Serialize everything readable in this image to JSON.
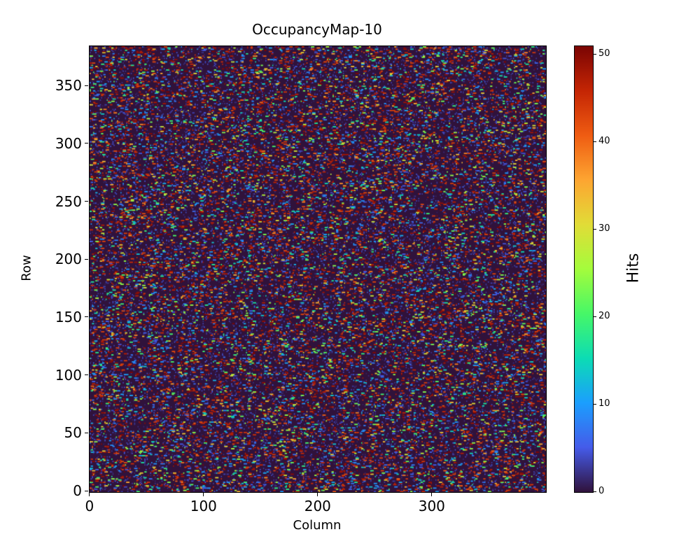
{
  "title": "OccupancyMap-10",
  "chart_data": {
    "type": "heatmap",
    "title": "OccupancyMap-10",
    "xlabel": "Column",
    "ylabel": "Row",
    "colorbar_label": "Hits",
    "cols": 400,
    "rows": 385,
    "vmin": 0,
    "vmax": 51,
    "x_ticks": [
      0,
      100,
      200,
      300
    ],
    "y_ticks": [
      0,
      50,
      100,
      150,
      200,
      250,
      300,
      350
    ],
    "colorbar_ticks": [
      0,
      10,
      20,
      30,
      40,
      50
    ],
    "colormap": "turbo",
    "colormap_stops": [
      [
        0.0,
        48,
        18,
        59
      ],
      [
        0.1,
        69,
        91,
        233
      ],
      [
        0.2,
        27,
        158,
        254
      ],
      [
        0.3,
        12,
        220,
        180
      ],
      [
        0.4,
        70,
        247,
        103
      ],
      [
        0.5,
        164,
        252,
        60
      ],
      [
        0.6,
        225,
        220,
        55
      ],
      [
        0.7,
        253,
        165,
        49
      ],
      [
        0.8,
        239,
        92,
        18
      ],
      [
        0.9,
        196,
        37,
        4
      ],
      [
        1.0,
        122,
        4,
        3
      ]
    ],
    "legend": "none",
    "grid": false,
    "seed": 10,
    "value_model": {
      "description": "dense random occupancy map: near-zero dark background with short horizontal dash runs of hits, dominated by high (red) values",
      "hit_probability": 0.11,
      "max_run_length": 3,
      "background_noise_probability": 0.3,
      "background_noise_max": 4,
      "hit_value_ranges": [
        {
          "min": 42,
          "max": 51,
          "weight": 0.5
        },
        {
          "min": 4,
          "max": 12,
          "weight": 0.2
        },
        {
          "min": 13,
          "max": 25,
          "weight": 0.16
        },
        {
          "min": 26,
          "max": 41,
          "weight": 0.14
        }
      ]
    }
  }
}
